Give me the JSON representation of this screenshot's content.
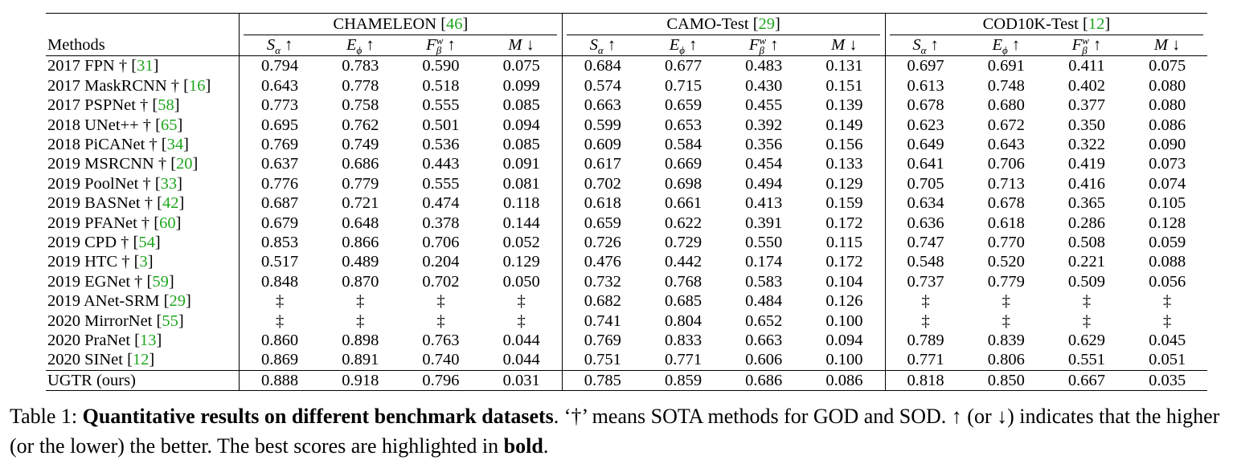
{
  "table": {
    "methods_header": "Methods",
    "groups": [
      {
        "name": "CHAMELEON",
        "cite": "46"
      },
      {
        "name": "CAMO-Test",
        "cite": "29"
      },
      {
        "name": "COD10K-Test",
        "cite": "12"
      }
    ],
    "metrics": [
      {
        "sym": "S",
        "sub": "α",
        "sup": "",
        "arrow": "↑"
      },
      {
        "sym": "E",
        "sub": "ϕ",
        "sup": "",
        "arrow": "↑"
      },
      {
        "sym": "F",
        "sub": "β",
        "sup": "w",
        "arrow": "↑"
      },
      {
        "sym": "M",
        "sub": "",
        "sup": "",
        "arrow": "↓"
      }
    ],
    "rows": [
      {
        "year": "2017",
        "name": "FPN",
        "dagger": "†",
        "cite": "31",
        "values": [
          "0.794",
          "0.783",
          "0.590",
          "0.075",
          "0.684",
          "0.677",
          "0.483",
          "0.131",
          "0.697",
          "0.691",
          "0.411",
          "0.075"
        ]
      },
      {
        "year": "2017",
        "name": "MaskRCNN",
        "dagger": "†",
        "cite": "16",
        "values": [
          "0.643",
          "0.778",
          "0.518",
          "0.099",
          "0.574",
          "0.715",
          "0.430",
          "0.151",
          "0.613",
          "0.748",
          "0.402",
          "0.080"
        ]
      },
      {
        "year": "2017",
        "name": "PSPNet",
        "dagger": "†",
        "cite": "58",
        "values": [
          "0.773",
          "0.758",
          "0.555",
          "0.085",
          "0.663",
          "0.659",
          "0.455",
          "0.139",
          "0.678",
          "0.680",
          "0.377",
          "0.080"
        ]
      },
      {
        "year": "2018",
        "name": "UNet++",
        "dagger": "†",
        "cite": "65",
        "values": [
          "0.695",
          "0.762",
          "0.501",
          "0.094",
          "0.599",
          "0.653",
          "0.392",
          "0.149",
          "0.623",
          "0.672",
          "0.350",
          "0.086"
        ]
      },
      {
        "year": "2018",
        "name": "PiCANet",
        "dagger": "†",
        "cite": "34",
        "values": [
          "0.769",
          "0.749",
          "0.536",
          "0.085",
          "0.609",
          "0.584",
          "0.356",
          "0.156",
          "0.649",
          "0.643",
          "0.322",
          "0.090"
        ]
      },
      {
        "year": "2019",
        "name": "MSRCNN",
        "dagger": "†",
        "cite": "20",
        "values": [
          "0.637",
          "0.686",
          "0.443",
          "0.091",
          "0.617",
          "0.669",
          "0.454",
          "0.133",
          "0.641",
          "0.706",
          "0.419",
          "0.073"
        ]
      },
      {
        "year": "2019",
        "name": "PoolNet",
        "dagger": "†",
        "cite": "33",
        "values": [
          "0.776",
          "0.779",
          "0.555",
          "0.081",
          "0.702",
          "0.698",
          "0.494",
          "0.129",
          "0.705",
          "0.713",
          "0.416",
          "0.074"
        ]
      },
      {
        "year": "2019",
        "name": "BASNet",
        "dagger": "†",
        "cite": "42",
        "values": [
          "0.687",
          "0.721",
          "0.474",
          "0.118",
          "0.618",
          "0.661",
          "0.413",
          "0.159",
          "0.634",
          "0.678",
          "0.365",
          "0.105"
        ]
      },
      {
        "year": "2019",
        "name": "PFANet",
        "dagger": "†",
        "cite": "60",
        "values": [
          "0.679",
          "0.648",
          "0.378",
          "0.144",
          "0.659",
          "0.622",
          "0.391",
          "0.172",
          "0.636",
          "0.618",
          "0.286",
          "0.128"
        ]
      },
      {
        "year": "2019",
        "name": "CPD",
        "dagger": "†",
        "cite": "54",
        "values": [
          "0.853",
          "0.866",
          "0.706",
          "0.052",
          "0.726",
          "0.729",
          "0.550",
          "0.115",
          "0.747",
          "0.770",
          "0.508",
          "0.059"
        ]
      },
      {
        "year": "2019",
        "name": "HTC",
        "dagger": "†",
        "cite": "3",
        "values": [
          "0.517",
          "0.489",
          "0.204",
          "0.129",
          "0.476",
          "0.442",
          "0.174",
          "0.172",
          "0.548",
          "0.520",
          "0.221",
          "0.088"
        ]
      },
      {
        "year": "2019",
        "name": "EGNet",
        "dagger": "†",
        "cite": "59",
        "values": [
          "0.848",
          "0.870",
          "0.702",
          "0.050",
          "0.732",
          "0.768",
          "0.583",
          "0.104",
          "0.737",
          "0.779",
          "0.509",
          "0.056"
        ]
      },
      {
        "year": "2019",
        "name": "ANet-SRM",
        "dagger": "",
        "cite": "29",
        "values": [
          "‡",
          "‡",
          "‡",
          "‡",
          "0.682",
          "0.685",
          "0.484",
          "0.126",
          "‡",
          "‡",
          "‡",
          "‡"
        ]
      },
      {
        "year": "2020",
        "name": "MirrorNet",
        "dagger": "",
        "cite": "55",
        "values": [
          "‡",
          "‡",
          "‡",
          "‡",
          "0.741",
          "0.804",
          "0.652",
          "0.100",
          "‡",
          "‡",
          "‡",
          "‡"
        ]
      },
      {
        "year": "2020",
        "name": "PraNet",
        "dagger": "",
        "cite": "13",
        "values": [
          "0.860",
          "0.898",
          "0.763",
          "0.044",
          "0.769",
          "0.833",
          "0.663",
          "0.094",
          "0.789",
          "0.839",
          "0.629",
          "0.045"
        ]
      },
      {
        "year": "2020",
        "name": "SINet",
        "dagger": "",
        "cite": "12",
        "values": [
          "0.869",
          "0.891",
          "0.740",
          "0.044",
          "0.751",
          "0.771",
          "0.606",
          "0.100",
          "0.771",
          "0.806",
          "0.551",
          "0.051"
        ]
      }
    ],
    "ours": {
      "name": "UGTR",
      "suffix": "(ours)",
      "values": [
        "0.888",
        "0.918",
        "0.796",
        "0.031",
        "0.785",
        "0.859",
        "0.686",
        "0.086",
        "0.818",
        "0.850",
        "0.667",
        "0.035"
      ]
    }
  },
  "caption": {
    "label": "Table 1:",
    "title": "Quantitative results on different benchmark datasets",
    "text1": ". ‘†’ means SOTA methods for GOD and SOD. ↑ (or ↓) indicates that the higher (or the lower) the better. The best scores are highlighted in ",
    "bold_word": "bold",
    "text2": "."
  },
  "colors": {
    "citation": "#1fa61f",
    "text": "#000000"
  }
}
